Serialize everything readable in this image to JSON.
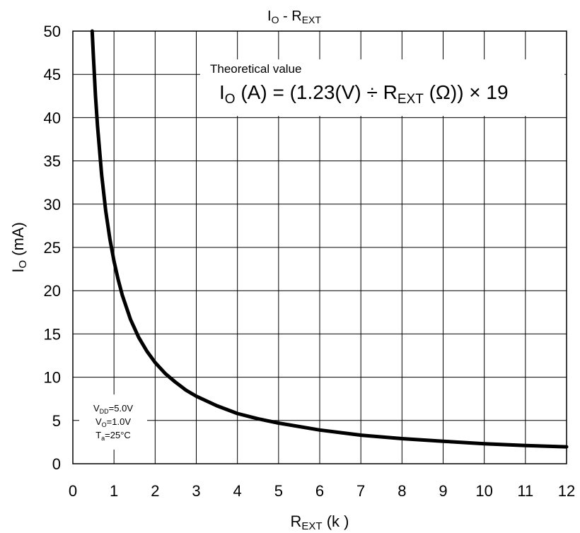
{
  "chart_data": {
    "type": "line",
    "title": {
      "main": "I",
      "sub1": "O",
      "mid": " - R",
      "sub2": "EXT"
    },
    "xlabel": {
      "main": "R",
      "sub": "EXT",
      "rest": " (k  )"
    },
    "ylabel": {
      "main": "I",
      "sub": "O",
      "rest": " (mA)"
    },
    "xlim": [
      0,
      12
    ],
    "ylim": [
      0,
      50
    ],
    "x_ticks": [
      0,
      1,
      2,
      3,
      4,
      5,
      6,
      7,
      8,
      9,
      10,
      11,
      12
    ],
    "y_ticks": [
      0,
      5,
      10,
      15,
      20,
      25,
      30,
      35,
      40,
      45,
      50
    ],
    "grid": true,
    "annotation": {
      "label": "Theoretical value",
      "formula": {
        "p1": "I",
        "p1_sub": "O",
        "p2": " (A) = (1.23(V) ÷ R",
        "p2_sub": "EXT",
        "p3": " (Ω)) × 19"
      }
    },
    "conditions": {
      "vdd": {
        "main": "V",
        "sub": "DD",
        "value": "=5.0V"
      },
      "vo": {
        "main": "V",
        "sub": "O",
        "value": "=1.0V"
      },
      "ta": {
        "main": "T",
        "sub": "a",
        "value": "=25°C"
      }
    },
    "series": [
      {
        "color": "#000000",
        "x": [
          0.47,
          0.5,
          0.55,
          0.6,
          0.7,
          0.8,
          0.9,
          1.0,
          1.1,
          1.2,
          1.4,
          1.6,
          1.8,
          2.0,
          2.25,
          2.5,
          2.75,
          3.0,
          3.5,
          4.0,
          4.5,
          5.0,
          6.0,
          7.0,
          8.0,
          9.0,
          10.0,
          11.0,
          12.0
        ],
        "y": [
          50.0,
          47.0,
          42.5,
          39.0,
          33.4,
          29.2,
          26.0,
          23.4,
          21.3,
          19.5,
          16.7,
          14.6,
          13.0,
          11.7,
          10.4,
          9.4,
          8.5,
          7.8,
          6.7,
          5.8,
          5.2,
          4.7,
          3.9,
          3.3,
          2.9,
          2.6,
          2.3,
          2.1,
          1.95
        ]
      }
    ]
  }
}
